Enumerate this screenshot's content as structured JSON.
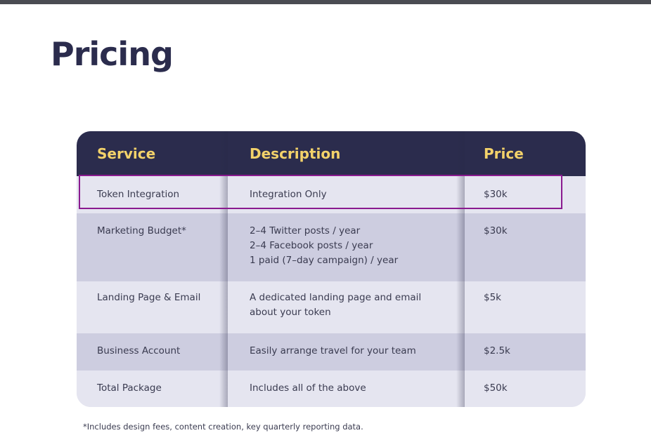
{
  "title": "Pricing",
  "table": {
    "headers": {
      "service": "Service",
      "description": "Description",
      "price": "Price"
    },
    "rows": [
      {
        "service": "Token Integration",
        "description": [
          "Integration Only"
        ],
        "price": "$30k"
      },
      {
        "service": "Marketing Budget*",
        "description": [
          "2–4 Twitter posts / year",
          "2–4 Facebook posts / year",
          "1 paid (7–day campaign) / year"
        ],
        "price": "$30k"
      },
      {
        "service": "Landing Page & Email",
        "description": [
          "A dedicated landing page and email",
          "about your token"
        ],
        "price": "$5k"
      },
      {
        "service": "Business Account",
        "description": [
          "Easily arrange travel for your team"
        ],
        "price": "$2.5k"
      },
      {
        "service": "Total Package",
        "description": [
          "Includes all of the above"
        ],
        "price": "$50k"
      }
    ]
  },
  "footnote": "*Includes design fees, content creation, key quarterly reporting data.",
  "colors": {
    "header_bg": "#2b2c4d",
    "header_text": "#f3d26a",
    "row_light": "#e5e5f0",
    "row_dark": "#cdcde0",
    "highlight_border": "#8a1a8f"
  }
}
